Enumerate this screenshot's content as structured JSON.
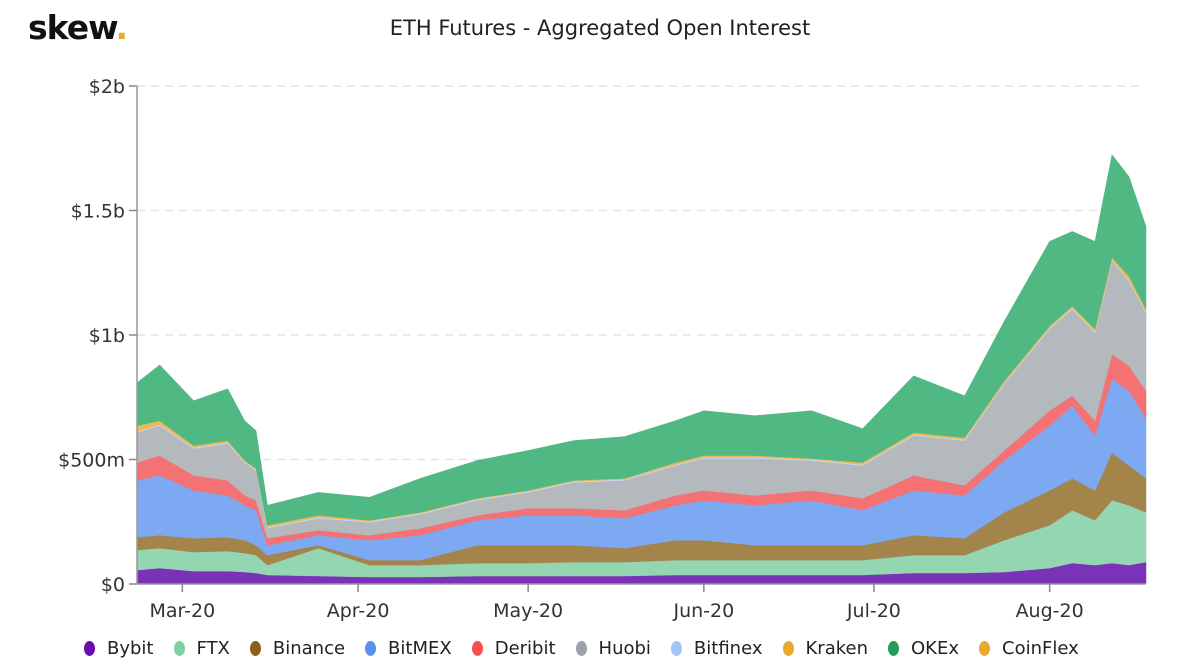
{
  "logo": {
    "text": "skew",
    "dot": "."
  },
  "chart_data": {
    "type": "area",
    "stacked": true,
    "title": "ETH Futures - Aggregated Open Interest",
    "unit": "$m",
    "ylim": [
      0,
      2000
    ],
    "yticks": [
      {
        "v": 0,
        "label": "$0"
      },
      {
        "v": 500,
        "label": "$500m"
      },
      {
        "v": 1000,
        "label": "$1b"
      },
      {
        "v": 1500,
        "label": "$1.5b"
      },
      {
        "v": 2000,
        "label": "$2b"
      }
    ],
    "xticks": [
      {
        "date": "2020-03-01",
        "label": "Mar-20"
      },
      {
        "date": "2020-04-01",
        "label": "Apr-20"
      },
      {
        "date": "2020-05-01",
        "label": "May-20"
      },
      {
        "date": "2020-06-01",
        "label": "Jun-20"
      },
      {
        "date": "2020-07-01",
        "label": "Jul-20"
      },
      {
        "date": "2020-08-01",
        "label": "Aug-20"
      }
    ],
    "xrange": [
      "2020-02-22",
      "2020-08-18"
    ],
    "x": [
      "2020-02-22",
      "2020-02-26",
      "2020-03-03",
      "2020-03-09",
      "2020-03-12",
      "2020-03-14",
      "2020-03-16",
      "2020-03-25",
      "2020-04-03",
      "2020-04-12",
      "2020-04-22",
      "2020-05-01",
      "2020-05-09",
      "2020-05-18",
      "2020-05-27",
      "2020-06-01",
      "2020-06-10",
      "2020-06-20",
      "2020-06-29",
      "2020-07-08",
      "2020-07-17",
      "2020-07-24",
      "2020-08-01",
      "2020-08-05",
      "2020-08-09",
      "2020-08-12",
      "2020-08-15",
      "2020-08-18"
    ],
    "legend_position": "bottom",
    "grid": true,
    "series": [
      {
        "name": "Bybit",
        "color": "#6a0dad",
        "fill": "#7b32b8",
        "values": [
          56,
          64,
          52,
          52,
          48,
          44,
          36,
          32,
          28,
          28,
          32,
          32,
          32,
          32,
          36,
          36,
          36,
          36,
          36,
          44,
          44,
          48,
          64,
          84,
          76,
          84,
          76,
          88
        ]
      },
      {
        "name": "FTX",
        "color": "#7fcfa3",
        "fill": "#94d5b2",
        "values": [
          80,
          80,
          76,
          80,
          76,
          72,
          40,
          112,
          48,
          48,
          52,
          52,
          56,
          56,
          60,
          60,
          60,
          60,
          60,
          72,
          72,
          128,
          172,
          212,
          180,
          252,
          240,
          200
        ]
      },
      {
        "name": "Binance",
        "color": "#8b5e1a",
        "fill": "#a3844a",
        "values": [
          52,
          52,
          56,
          56,
          52,
          40,
          40,
          12,
          20,
          20,
          72,
          72,
          68,
          56,
          80,
          80,
          60,
          60,
          60,
          80,
          68,
          112,
          140,
          128,
          120,
          192,
          160,
          136
        ]
      },
      {
        "name": "BitMEX",
        "color": "#5b8ff0",
        "fill": "#7da8f2",
        "values": [
          228,
          240,
          192,
          168,
          140,
          140,
          40,
          40,
          80,
          100,
          100,
          120,
          120,
          120,
          140,
          160,
          160,
          180,
          140,
          180,
          172,
          208,
          260,
          292,
          220,
          296,
          300,
          240
        ]
      },
      {
        "name": "Deribit",
        "color": "#f55050",
        "fill": "#f47174",
        "values": [
          72,
          80,
          60,
          60,
          40,
          40,
          28,
          20,
          20,
          28,
          20,
          28,
          28,
          32,
          40,
          40,
          40,
          40,
          48,
          60,
          40,
          40,
          60,
          40,
          60,
          100,
          100,
          112
        ]
      },
      {
        "name": "Huobi",
        "color": "#9aa3ab",
        "fill": "#b3b9bd",
        "values": [
          120,
          120,
          108,
          148,
          132,
          120,
          40,
          48,
          52,
          56,
          60,
          64,
          104,
          120,
          120,
          128,
          148,
          120,
          132,
          160,
          180,
          268,
          328,
          348,
          352,
          372,
          340,
          312
        ]
      },
      {
        "name": "Bitfinex",
        "color": "#a4c3f7",
        "fill": "#c5d8f7",
        "values": [
          4,
          4,
          4,
          4,
          4,
          4,
          4,
          4,
          4,
          4,
          4,
          4,
          4,
          4,
          4,
          4,
          4,
          4,
          4,
          4,
          4,
          4,
          4,
          4,
          4,
          4,
          4,
          4
        ]
      },
      {
        "name": "Kraken",
        "color": "#e9a92a",
        "fill": "#ecb85a",
        "values": [
          24,
          16,
          8,
          8,
          4,
          4,
          8,
          8,
          4,
          4,
          4,
          4,
          4,
          4,
          8,
          8,
          8,
          4,
          8,
          8,
          8,
          8,
          8,
          8,
          12,
          12,
          16,
          12
        ]
      },
      {
        "name": "OKEx",
        "color": "#1f9e5a",
        "fill": "#4fb883",
        "values": [
          172,
          224,
          180,
          208,
          160,
          152,
          80,
          92,
          92,
          136,
          152,
          160,
          160,
          168,
          168,
          180,
          160,
          192,
          136,
          228,
          168,
          240,
          340,
          300,
          352,
          412,
          400,
          332
        ]
      },
      {
        "name": "CoinFlex",
        "color": "#e9a92a",
        "fill": "#ecb85a",
        "values": [
          0,
          0,
          0,
          0,
          0,
          0,
          0,
          0,
          0,
          0,
          0,
          0,
          0,
          0,
          0,
          0,
          0,
          0,
          0,
          0,
          0,
          0,
          0,
          0,
          0,
          0,
          0,
          0
        ]
      }
    ]
  }
}
